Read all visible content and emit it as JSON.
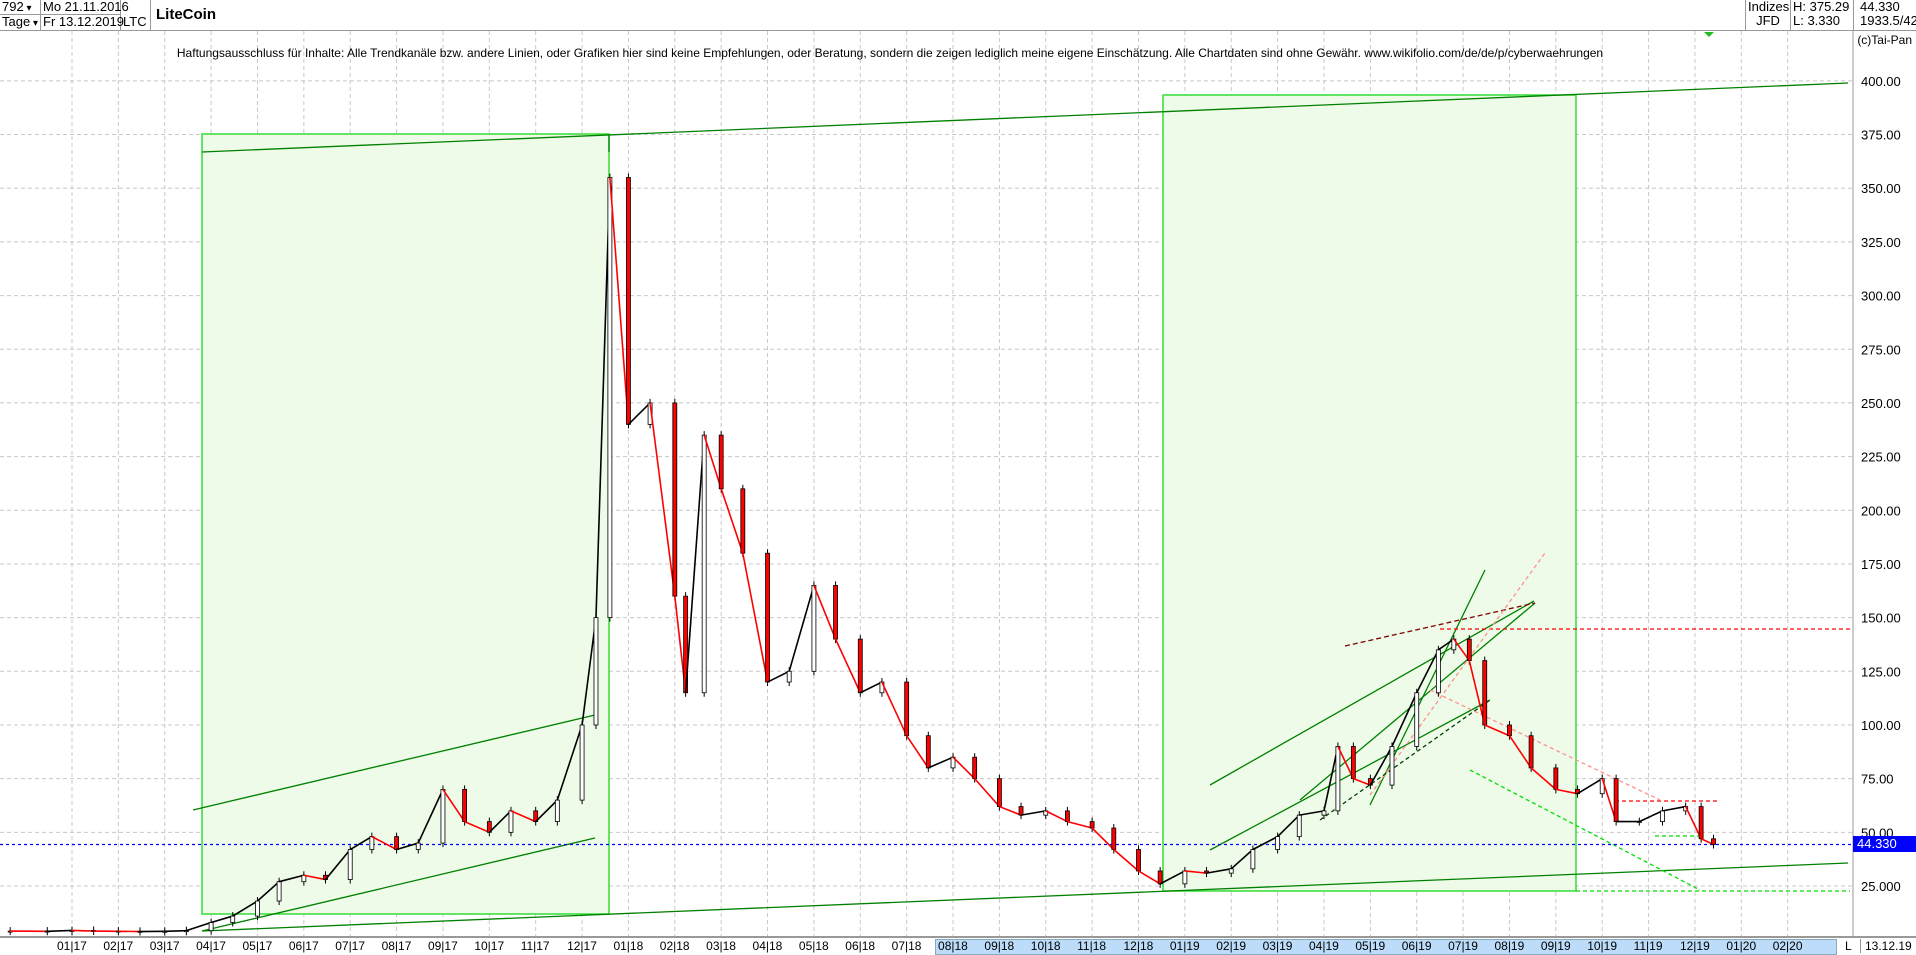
{
  "header": {
    "count": "792",
    "start_date": "Mo 21.11.2016",
    "period": "Tage",
    "end_date": "Fr 13.12.2019",
    "symbol": "LTC",
    "title": "LiteCoin",
    "market": "Indizes",
    "source": "JFD",
    "high": "H: 375.29",
    "low": "L: 3.330",
    "last": "44.330",
    "info": "1933.5/42",
    "copyright": "(c)Tai-Pan"
  },
  "disclaimer": "Haftungsausschluss für Inhalte: Alle Trendkanäle bzw. andere Linien, oder Grafiken hier sind keine Empfehlungen, oder Beratung, sondern die zeigen lediglich meine eigene Einschätzung. Alle Chartdaten sind ohne Gewähr.  www.wikifolio.com/de/de/p/cyberwaehrungen",
  "footer": {
    "mode": "L",
    "date": "13.12.19"
  },
  "colors": {
    "up": "#000000",
    "down": "#ff0000",
    "box_fill": "#eefbe8",
    "box_border": "#33dd33",
    "trend": "#008000",
    "last_price": "#0000ff"
  },
  "chart_data": {
    "type": "line",
    "title": "LiteCoin",
    "ylim": [
      0,
      412
    ],
    "grid": true,
    "y_ticks": [
      "25.000",
      "50.00",
      "75.00",
      "100.00",
      "125.00",
      "150.00",
      "175.00",
      "200.00",
      "225.00",
      "250.00",
      "275.00",
      "300.00",
      "325.00",
      "350.00",
      "375.00",
      "400.00"
    ],
    "x_ticks": [
      "01|17",
      "02|17",
      "03|17",
      "04|17",
      "05|17",
      "06|17",
      "07|17",
      "08|17",
      "09|17",
      "10|17",
      "11|17",
      "12|17",
      "01|18",
      "02|18",
      "03|18",
      "04|18",
      "05|18",
      "06|18",
      "07|18",
      "08|18",
      "09|18",
      "10|18",
      "11|18",
      "12|18",
      "01|19",
      "02|19",
      "03|19",
      "04|19",
      "05|19",
      "06|19",
      "07|19",
      "08|19",
      "09|19",
      "10|19",
      "11|19",
      "12|19",
      "01|20",
      "02|20"
    ],
    "last_price": 44.33,
    "last_price_label": "44.330",
    "x": [
      "2016-11-21",
      "2016-12-15",
      "2017-01-01",
      "2017-01-15",
      "2017-02-01",
      "2017-02-15",
      "2017-03-01",
      "2017-03-15",
      "2017-04-01",
      "2017-04-15",
      "2017-05-01",
      "2017-05-15",
      "2017-06-01",
      "2017-06-15",
      "2017-07-01",
      "2017-07-15",
      "2017-08-01",
      "2017-08-15",
      "2017-09-01",
      "2017-09-15",
      "2017-10-01",
      "2017-10-15",
      "2017-11-01",
      "2017-11-15",
      "2017-12-01",
      "2017-12-10",
      "2017-12-19",
      "2018-01-01",
      "2018-01-15",
      "2018-02-01",
      "2018-02-08",
      "2018-02-20",
      "2018-03-01",
      "2018-03-15",
      "2018-04-01",
      "2018-04-15",
      "2018-05-01",
      "2018-05-15",
      "2018-06-01",
      "2018-06-15",
      "2018-07-01",
      "2018-07-15",
      "2018-08-01",
      "2018-08-15",
      "2018-09-01",
      "2018-09-15",
      "2018-10-01",
      "2018-10-15",
      "2018-11-01",
      "2018-11-15",
      "2018-12-01",
      "2018-12-15",
      "2019-01-01",
      "2019-01-15",
      "2019-02-01",
      "2019-02-15",
      "2019-03-01",
      "2019-03-15",
      "2019-04-01",
      "2019-04-10",
      "2019-04-20",
      "2019-05-01",
      "2019-05-15",
      "2019-06-01",
      "2019-06-15",
      "2019-06-25",
      "2019-07-05",
      "2019-07-15",
      "2019-08-01",
      "2019-08-15",
      "2019-09-01",
      "2019-09-15",
      "2019-10-01",
      "2019-10-10",
      "2019-10-25",
      "2019-11-10",
      "2019-11-25",
      "2019-12-05",
      "2019-12-13"
    ],
    "close": [
      4.0,
      3.9,
      4.3,
      4.0,
      3.9,
      3.8,
      3.9,
      4.2,
      8,
      11,
      18,
      27,
      30,
      28,
      42,
      48,
      42,
      45,
      70,
      55,
      50,
      60,
      55,
      65,
      100,
      150,
      355,
      240,
      250,
      160,
      115,
      235,
      210,
      180,
      120,
      125,
      165,
      140,
      115,
      120,
      95,
      80,
      85,
      75,
      62,
      58,
      60,
      55,
      52,
      42,
      32,
      26,
      32,
      31,
      33,
      42,
      48,
      58,
      60,
      90,
      75,
      72,
      90,
      115,
      135,
      140,
      130,
      100,
      95,
      80,
      70,
      68,
      75,
      55,
      55,
      60,
      62,
      47,
      44.33
    ]
  }
}
